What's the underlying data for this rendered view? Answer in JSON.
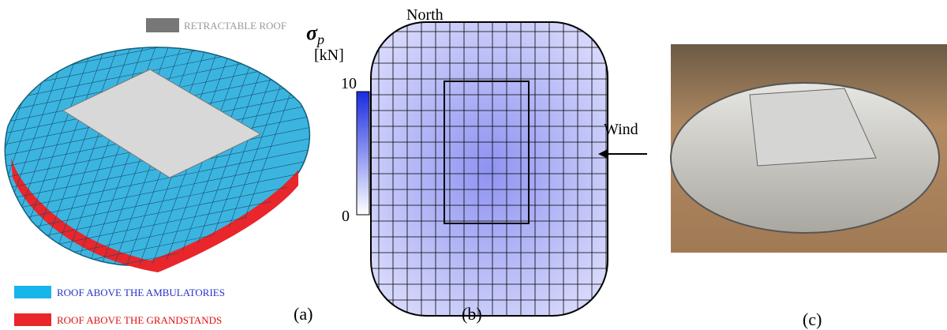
{
  "panel_a": {
    "legend_top": "RETRACTABLE ROOF",
    "legend_ambulatories": "ROOF ABOVE THE AMBULATORIES",
    "legend_grandstands": "ROOF ABOVE THE GRANDSTANDS",
    "label": "(a)"
  },
  "panel_b": {
    "symbol": "σ",
    "subscript": "p",
    "north": "North",
    "unit": "[kN]",
    "colorbar_max": "10",
    "colorbar_min": "0",
    "wind": "Wind",
    "label": "(b)"
  },
  "panel_c": {
    "label": "(c)"
  }
}
